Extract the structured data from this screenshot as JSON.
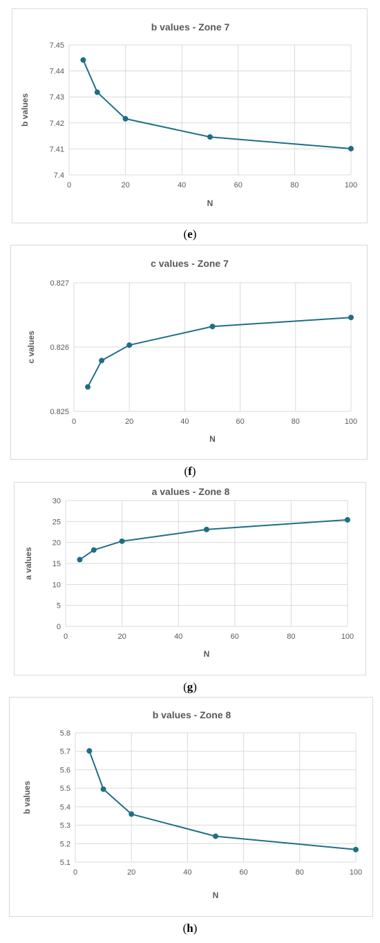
{
  "colors": {
    "series": "#1f6e86",
    "grid": "#d9d9d9",
    "text": "#595959"
  },
  "panels": [
    {
      "caption_open": "(",
      "caption_letter": "e",
      "caption_close": ")"
    },
    {
      "caption_open": "(",
      "caption_letter": "f",
      "caption_close": ")"
    },
    {
      "caption_open": "(",
      "caption_letter": "g",
      "caption_close": ")"
    },
    {
      "caption_open": "(",
      "caption_letter": "h",
      "caption_close": ")"
    }
  ],
  "chart_data": [
    {
      "type": "line",
      "title": "b values - Zone 7",
      "xlabel": "N",
      "ylabel": "b values",
      "x": [
        5,
        10,
        20,
        50,
        100
      ],
      "series": [
        {
          "values": [
            7.4442,
            7.4318,
            7.4216,
            7.4146,
            7.4101
          ]
        }
      ],
      "xlim": [
        0,
        100
      ],
      "ylim": [
        7.4,
        7.45
      ],
      "xticks": [
        "0",
        "20",
        "40",
        "60",
        "80",
        "100"
      ],
      "yticks": [
        "7.4",
        "7.41",
        "7.42",
        "7.43",
        "7.44",
        "7.45"
      ],
      "grid": true
    },
    {
      "type": "line",
      "title": "c values - Zone 7",
      "xlabel": "N",
      "ylabel": "c values",
      "x": [
        5,
        10,
        20,
        50,
        100
      ],
      "series": [
        {
          "values": [
            0.82538,
            0.82579,
            0.82603,
            0.82632,
            0.82646
          ]
        }
      ],
      "xlim": [
        0,
        100
      ],
      "ylim": [
        0.825,
        0.827
      ],
      "xticks": [
        "0",
        "20",
        "40",
        "60",
        "80",
        "100"
      ],
      "yticks": [
        "0.825",
        "0.826",
        "0.827"
      ],
      "grid": true
    },
    {
      "type": "line",
      "title": "a values - Zone 8",
      "xlabel": "N",
      "ylabel": "a values",
      "x": [
        5,
        10,
        20,
        50,
        100
      ],
      "series": [
        {
          "values": [
            15.9,
            18.2,
            20.3,
            23.1,
            25.4
          ]
        }
      ],
      "xlim": [
        0,
        100
      ],
      "ylim": [
        0,
        30
      ],
      "xticks": [
        "0",
        "20",
        "40",
        "60",
        "80",
        "100"
      ],
      "yticks": [
        "0",
        "5",
        "10",
        "15",
        "20",
        "25",
        "30"
      ],
      "grid": true
    },
    {
      "type": "line",
      "title": "b values - Zone 8",
      "xlabel": "N",
      "ylabel": "b values",
      "x": [
        5,
        10,
        20,
        50,
        100
      ],
      "series": [
        {
          "values": [
            5.702,
            5.495,
            5.36,
            5.24,
            5.168
          ]
        }
      ],
      "xlim": [
        0,
        100
      ],
      "ylim": [
        5.1,
        5.8
      ],
      "xticks": [
        "0",
        "20",
        "40",
        "60",
        "80",
        "100"
      ],
      "yticks": [
        "5.1",
        "5.2",
        "5.3",
        "5.4",
        "5.5",
        "5.6",
        "5.7",
        "5.8"
      ],
      "grid": true
    }
  ]
}
